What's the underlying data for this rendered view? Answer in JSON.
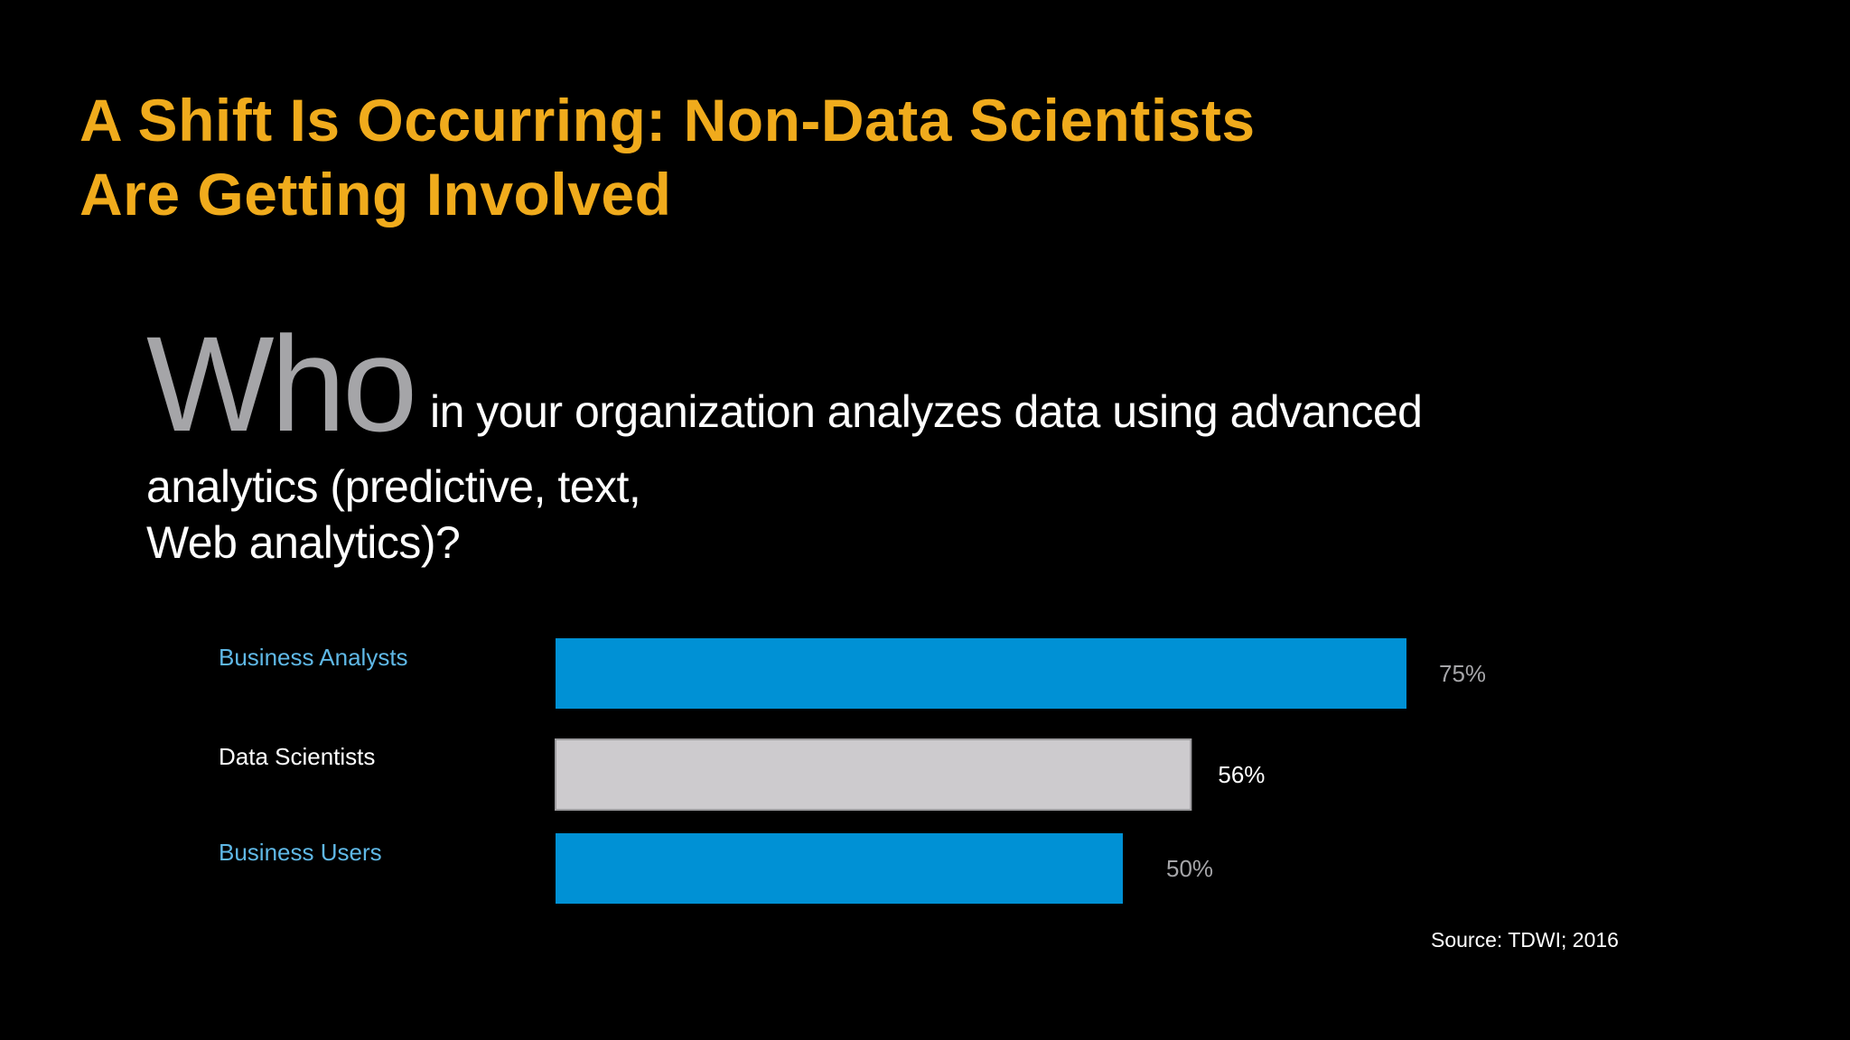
{
  "slide": {
    "title_line1": "A Shift Is Occurring: Non-Data Scientists",
    "title_line2": "Are Getting Involved",
    "question_lead": "Who",
    "question_rest_line1": "in your organization analyzes data using advanced",
    "question_rest_line2": "analytics (predictive, text,",
    "question_rest_line3": "Web analytics)?",
    "source": "Source: TDWI; 2016",
    "colors": {
      "background": "#000000",
      "title": "#f0ab1c",
      "question_lead": "#a5a5a8",
      "accent_blue": "#0091d5",
      "accent_blue_label": "#5fb8e6",
      "grey_bar": "#cdcbce"
    }
  },
  "chart_data": {
    "type": "bar",
    "orientation": "horizontal",
    "categories": [
      "Business Analysts",
      "Data Scientists",
      "Business Users"
    ],
    "values": [
      75,
      56,
      50
    ],
    "value_labels": [
      "75%",
      "56%",
      "50%"
    ],
    "unit": "%",
    "xlim": [
      0,
      100
    ],
    "bar_colors": [
      "#0091d5",
      "#cdcbce",
      "#0091d5"
    ],
    "label_colors": [
      "#5fb8e6",
      "#ffffff",
      "#5fb8e6"
    ],
    "value_label_colors": [
      "#a5a5a8",
      "#ffffff",
      "#a5a5a8"
    ],
    "grid": false,
    "legend": "none"
  }
}
